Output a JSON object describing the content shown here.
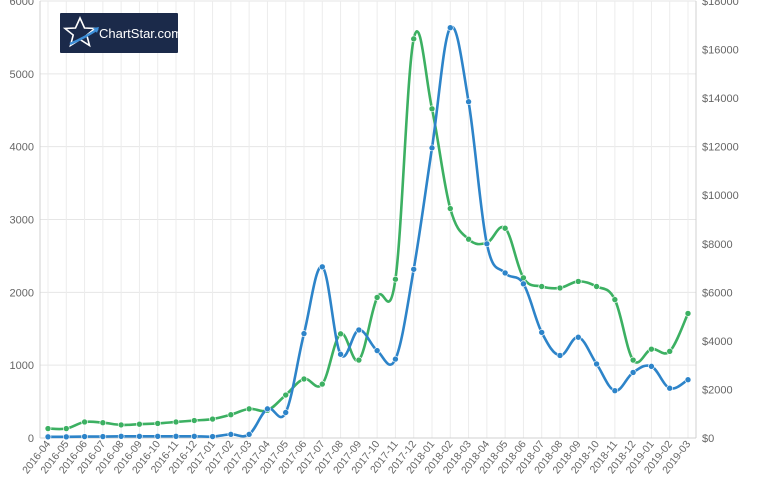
{
  "chart_data": {
    "type": "line",
    "logo": {
      "text": "ChartStar.com",
      "bg": "#1b2a4a"
    },
    "categories": [
      "2016-04",
      "2016-05",
      "2016-06",
      "2016-07",
      "2016-08",
      "2016-09",
      "2016-10",
      "2016-11",
      "2016-12",
      "2017-01",
      "2017-02",
      "2017-03",
      "2017-04",
      "2017-05",
      "2017-06",
      "2017-07",
      "2017-08",
      "2017-09",
      "2017-10",
      "2017-11",
      "2017-12",
      "2018-01",
      "2018-02",
      "2018-03",
      "2018-04",
      "2018-05",
      "2018-06",
      "2018-07",
      "2018-08",
      "2018-09",
      "2018-10",
      "2018-11",
      "2018-12",
      "2019-01",
      "2019-02",
      "2019-03"
    ],
    "left_axis": {
      "min": 0,
      "max": 6000,
      "ticks": [
        "0",
        "1000",
        "2000",
        "3000",
        "4000",
        "5000",
        "6000"
      ],
      "tick_values": [
        0,
        1000,
        2000,
        3000,
        4000,
        5000,
        6000
      ]
    },
    "right_axis": {
      "min": 0,
      "max": 18000,
      "ticks": [
        "$0",
        "$2000",
        "$4000",
        "$6000",
        "$8000",
        "$10000",
        "$12000",
        "$14000",
        "$16000",
        "$18000"
      ],
      "tick_values": [
        0,
        2000,
        4000,
        6000,
        8000,
        10000,
        12000,
        14000,
        16000,
        18000
      ]
    },
    "grid": true,
    "series": [
      {
        "axis": "left",
        "color": "#3cb062",
        "values": [
          130,
          130,
          220,
          210,
          180,
          190,
          200,
          220,
          240,
          260,
          320,
          400,
          380,
          590,
          810,
          740,
          1430,
          1070,
          1930,
          2180,
          5480,
          4520,
          3150,
          2730,
          2680,
          2880,
          2200,
          2080,
          2060,
          2150,
          2080,
          1900,
          1070,
          1220,
          1190,
          1710
        ]
      },
      {
        "axis": "right",
        "color": "#2d84c9",
        "values": [
          50,
          50,
          60,
          60,
          70,
          70,
          70,
          70,
          70,
          60,
          150,
          150,
          1200,
          1050,
          4300,
          7050,
          3450,
          4450,
          3600,
          3250,
          6950,
          11950,
          16900,
          13850,
          8000,
          6800,
          6350,
          4350,
          3400,
          4150,
          3050,
          1950,
          2700,
          2950,
          2050,
          2400
        ]
      }
    ]
  }
}
